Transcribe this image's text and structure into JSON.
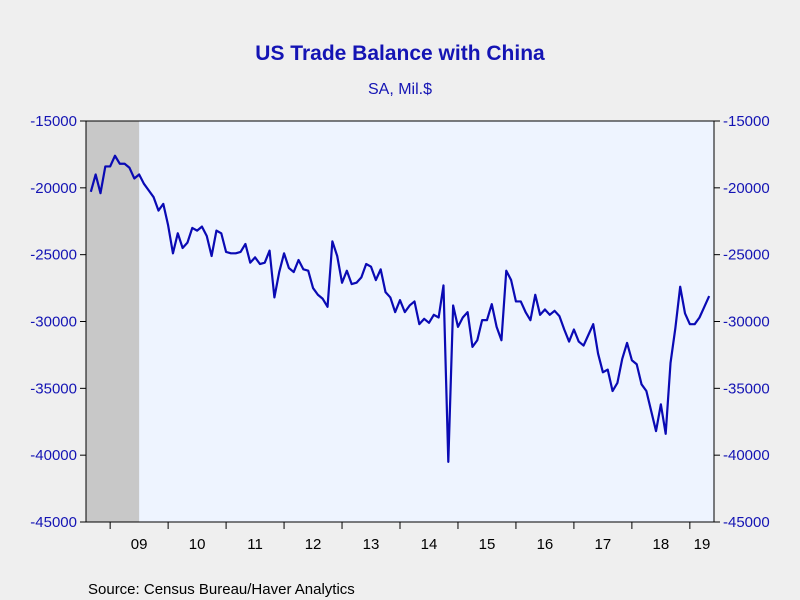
{
  "chart_data": {
    "type": "line",
    "title": "US Trade Balance with China",
    "subtitle": "SA, Mil.$",
    "source": "Source:  Census Bureau/Haver Analytics",
    "ylim": [
      -45000,
      -15000
    ],
    "y_ticks": [
      "-15000",
      "-20000",
      "-25000",
      "-30000",
      "-35000",
      "-40000",
      "-45000"
    ],
    "y_tick_values": [
      -15000,
      -20000,
      -25000,
      -30000,
      -35000,
      -40000,
      -45000
    ],
    "x_tick_labels": [
      "09",
      "10",
      "11",
      "12",
      "13",
      "14",
      "15",
      "16",
      "17",
      "18",
      "19"
    ],
    "x_tick_years": [
      2009,
      2010,
      2011,
      2012,
      2013,
      2014,
      2015,
      2016,
      2017,
      2018,
      2019
    ],
    "x_start": "2008-08",
    "x_end": "2019-06",
    "recession_shading": {
      "start": "2008-08",
      "end": "2009-06",
      "color": "#c8c8c8"
    },
    "line_color": "#0a0ab4",
    "plot_background": "#eef4ff",
    "grid": false,
    "series": [
      {
        "start": "2008-09",
        "values": [
          -20300,
          -19000,
          -20400,
          -18400,
          -18400,
          -17600,
          -18200,
          -18200,
          -18500,
          -19300,
          -19000,
          -19700,
          -20200,
          -20700,
          -21700,
          -21200,
          -22800,
          -24900,
          -23400,
          -24500,
          -24100,
          -23000,
          -23200,
          -22900,
          -23600,
          -25100,
          -23200,
          -23400,
          -24800,
          -24900,
          -24900,
          -24800,
          -24200,
          -25600,
          -25200,
          -25700,
          -25600,
          -24700,
          -28200,
          -26300,
          -24900,
          -26000,
          -26300,
          -25400,
          -26100,
          -26200,
          -27500,
          -28000,
          -28300,
          -28900,
          -24000,
          -25100,
          -27100,
          -26200,
          -27200,
          -27100,
          -26700,
          -25700,
          -25900,
          -26900,
          -26100,
          -27800,
          -28200,
          -29300,
          -28400,
          -29300,
          -28800,
          -28500,
          -30200,
          -29800,
          -30100,
          -29500,
          -29700,
          -27300,
          -40500,
          -28800,
          -30400,
          -29700,
          -29300,
          -31900,
          -31400,
          -29900,
          -29900,
          -28700,
          -30400,
          -31400,
          -26200,
          -26900,
          -28500,
          -28500,
          -29300,
          -29900,
          -28000,
          -29500,
          -29100,
          -29500,
          -29200,
          -29600,
          -30600,
          -31500,
          -30600,
          -31500,
          -31800,
          -31000,
          -30200,
          -32400,
          -33800,
          -33600,
          -35200,
          -34600,
          -32800,
          -31600,
          -32900,
          -33200,
          -34700,
          -35200,
          -36700,
          -38200,
          -36200,
          -38400,
          -33100,
          -30500,
          -27400,
          -29400,
          -30200,
          -30200,
          -29700,
          -28900,
          -28100
        ]
      }
    ]
  }
}
